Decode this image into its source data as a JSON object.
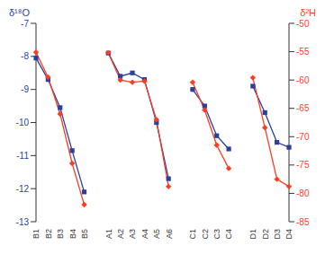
{
  "chart_data": {
    "type": "line",
    "y_label": "δ¹⁸O",
    "y2_label": "δ²H",
    "categories": [
      "B1",
      "B2",
      "B3",
      "B4",
      "B5",
      null,
      "A1",
      "A2",
      "A3",
      "A4",
      "A5",
      "A6",
      null,
      "C1",
      "C2",
      "C3",
      "C4",
      null,
      "D1",
      "D2",
      "D3",
      "D4"
    ],
    "series": [
      {
        "name": "δ¹⁸O",
        "color": "#2b3f9e",
        "marker": "square",
        "values": [
          -8.05,
          -8.7,
          -9.55,
          -10.85,
          -12.1,
          null,
          -7.9,
          -8.6,
          -8.5,
          -8.7,
          -10.0,
          -11.7,
          null,
          -9.0,
          -9.5,
          -10.4,
          -10.8,
          null,
          -8.9,
          -9.7,
          -10.6,
          -10.75
        ]
      },
      {
        "name": "δ²H",
        "color": "#ff3c1f",
        "marker": "diamond",
        "axis": "y2",
        "values": [
          -55.1,
          -59.5,
          -66.0,
          -74.7,
          -82.0,
          null,
          -55.2,
          -60.0,
          -60.4,
          -60.2,
          -67.0,
          -78.8,
          null,
          -60.4,
          -65.3,
          -71.5,
          -75.6,
          null,
          -59.6,
          -68.4,
          -77.5,
          -78.8
        ]
      }
    ],
    "ylim": [
      -13,
      -7
    ],
    "yticks": [
      -13,
      -12,
      -11,
      -10,
      -9,
      -8,
      -7
    ],
    "y2lim": [
      -85,
      -50
    ],
    "y2ticks": [
      -85,
      -80,
      -75,
      -70,
      -65,
      -60,
      -55,
      -50
    ],
    "grid": false
  }
}
